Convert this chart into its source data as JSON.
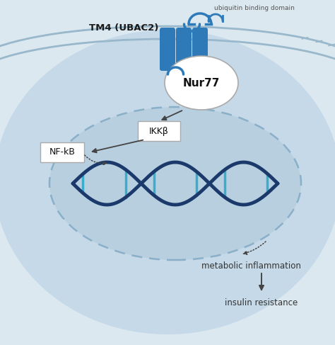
{
  "bg_color": "#dce8f0",
  "cell_color": "#c5d9e8",
  "membrane_color": "#99b8cc",
  "nucleus_fill": "#b8cfe0",
  "nucleus_edge": "#8aafc8",
  "protein_color": "#2e7ab8",
  "dna_dark": "#1b3a6b",
  "dna_light": "#3aadcc",
  "arrow_color": "#444444",
  "box_fill": "#ffffff",
  "box_edge": "#aaaaaa",
  "nur77_fill": "#ffffff",
  "nur77_edge": "#aaaaaa",
  "tm4_label": "TM4 (UBAC2)",
  "ubiquitin_label": "ubiquitin binding domain",
  "nur77_label": "Nur77",
  "ikkb_label": "IKKβ",
  "nfkb_label": "NF-kB",
  "metainflam_label": "metabolic inflammation",
  "insulin_label": "insulin resistance"
}
